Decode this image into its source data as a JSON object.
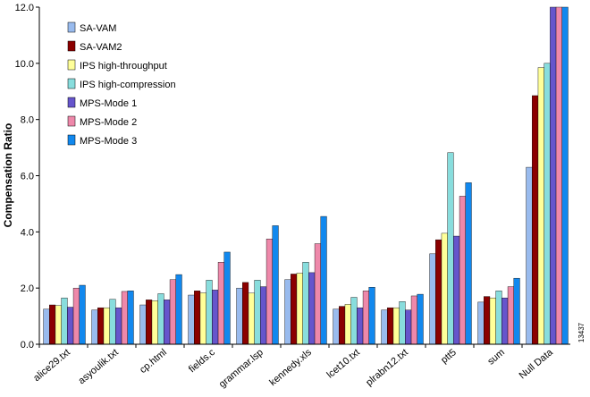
{
  "chart_data": {
    "type": "bar",
    "title": "",
    "xlabel": "",
    "ylabel": "Compensation Ratio",
    "ylim": [
      0,
      12
    ],
    "yticks": [
      0,
      2,
      4,
      6,
      8,
      10,
      12
    ],
    "ytick_labels": [
      "0.0",
      "2.0",
      "4.0",
      "6.0",
      "8.0",
      "10.0",
      "12.0"
    ],
    "grid": false,
    "legend_position": "top-left",
    "categories": [
      "alice29.txt",
      "asyoulik.txt",
      "cp.html",
      "fields.c",
      "grammar.lsp",
      "kennedy.xls",
      "lcet10.txt",
      "plrabn12.txt",
      "ptt5",
      "sum",
      "Null Data"
    ],
    "series": [
      {
        "name": "SA-VAM",
        "color": "#99bbee",
        "values": [
          1.25,
          1.22,
          1.4,
          1.75,
          2.0,
          2.3,
          1.25,
          1.22,
          3.22,
          1.5,
          6.3
        ]
      },
      {
        "name": "SA-VAM2",
        "color": "#8b0000",
        "values": [
          1.4,
          1.3,
          1.58,
          1.9,
          2.2,
          2.5,
          1.35,
          1.3,
          3.72,
          1.7,
          8.85
        ]
      },
      {
        "name": "IPS high-throughput",
        "color": "#ffff99",
        "values": [
          1.38,
          1.3,
          1.55,
          1.83,
          1.82,
          2.53,
          1.42,
          1.3,
          3.95,
          1.65,
          9.85
        ]
      },
      {
        "name": "IPS high-compression",
        "color": "#88dddd",
        "values": [
          1.65,
          1.6,
          1.8,
          2.28,
          2.28,
          2.92,
          1.67,
          1.52,
          6.82,
          1.9,
          10.0
        ]
      },
      {
        "name": "MPS-Mode 1",
        "color": "#6655cc",
        "values": [
          1.32,
          1.3,
          1.58,
          1.93,
          2.05,
          2.55,
          1.3,
          1.22,
          3.85,
          1.65,
          12.0
        ]
      },
      {
        "name": "MPS-Mode 2",
        "color": "#ee88aa",
        "values": [
          2.0,
          1.88,
          2.3,
          2.92,
          3.75,
          3.58,
          1.9,
          1.72,
          5.27,
          2.05,
          12.0
        ]
      },
      {
        "name": "MPS-Mode 3",
        "color": "#1188ee",
        "values": [
          2.1,
          1.9,
          2.48,
          3.28,
          4.22,
          4.55,
          2.03,
          1.78,
          5.75,
          2.35,
          12.0
        ]
      }
    ],
    "side_id": "13437"
  }
}
